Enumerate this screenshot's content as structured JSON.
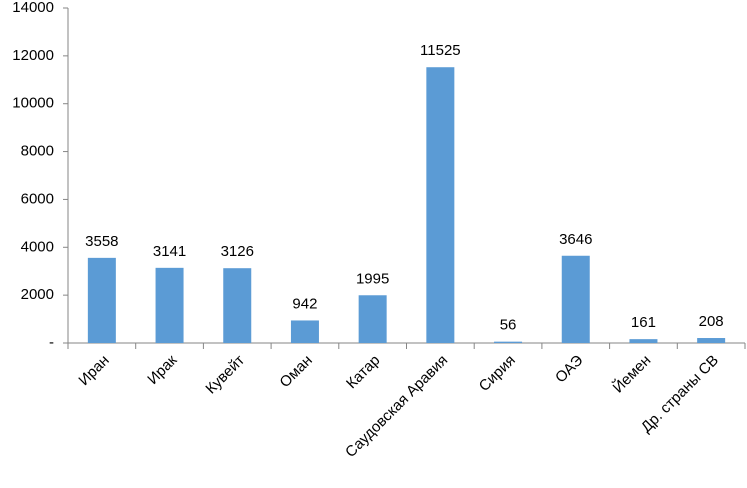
{
  "chart_data": {
    "type": "bar",
    "categories": [
      "Иран",
      "Ирак",
      "Кувейт",
      "Оман",
      "Катар",
      "Саудовская Аравия",
      "Сирия",
      "ОАЭ",
      "Йемен",
      "Др. страны СВ"
    ],
    "values": [
      3558,
      3141,
      3126,
      942,
      1995,
      11525,
      56,
      3646,
      161,
      208
    ],
    "color": "#5b9bd5",
    "ylim": [
      0,
      14000
    ],
    "yticks": [
      {
        "value": 0,
        "label": "-"
      },
      2000,
      4000,
      6000,
      8000,
      10000,
      12000,
      14000
    ],
    "grid": false
  }
}
